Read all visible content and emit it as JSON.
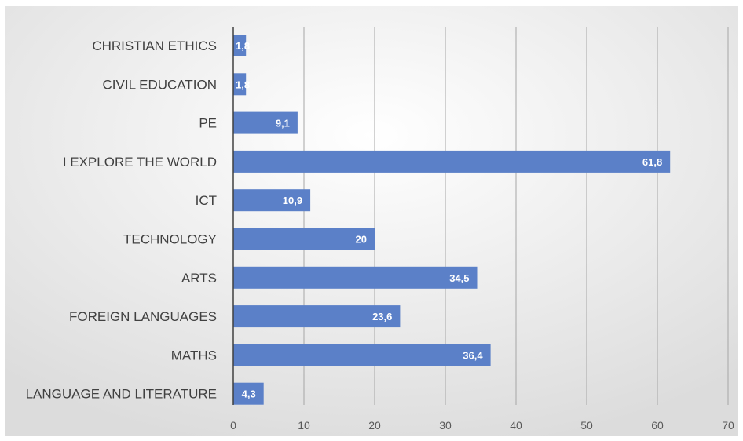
{
  "chart_data": {
    "type": "bar",
    "orientation": "horizontal",
    "title": "",
    "xlabel": "",
    "ylabel": "",
    "categories": [
      "CHRISTIAN ETHICS",
      "CIVIL EDUCATION",
      "PE",
      "I EXPLORE THE WORLD",
      "ICT",
      "TECHNOLOGY",
      "ARTS",
      "FOREIGN LANGUAGES",
      "MATHS",
      "LANGUAGE AND LITERATURE"
    ],
    "values": [
      1.8,
      1.8,
      9.1,
      61.8,
      10.9,
      20,
      34.5,
      23.6,
      36.4,
      4.3
    ],
    "data_labels": [
      "1,8",
      "1,8",
      "9,1",
      "61,8",
      "10,9",
      "20",
      "34,5",
      "23,6",
      "36,4",
      "4,3"
    ],
    "xlim": [
      0,
      70
    ],
    "x_ticks": [
      0,
      10,
      20,
      30,
      40,
      50,
      60,
      70
    ],
    "x_tick_labels": [
      "0",
      "10",
      "20",
      "30",
      "40",
      "50",
      "60",
      "70"
    ],
    "grid": "vertical",
    "legend": "none",
    "colors": {
      "bar": "#5b80c8",
      "gridline": "#a6a6a6",
      "axis": "#404040",
      "category_text": "#404040",
      "tick_text": "#595959",
      "data_label_text": "#ffffff",
      "background_light": "#ffffff",
      "background_dark": "#dcdcdc"
    }
  }
}
